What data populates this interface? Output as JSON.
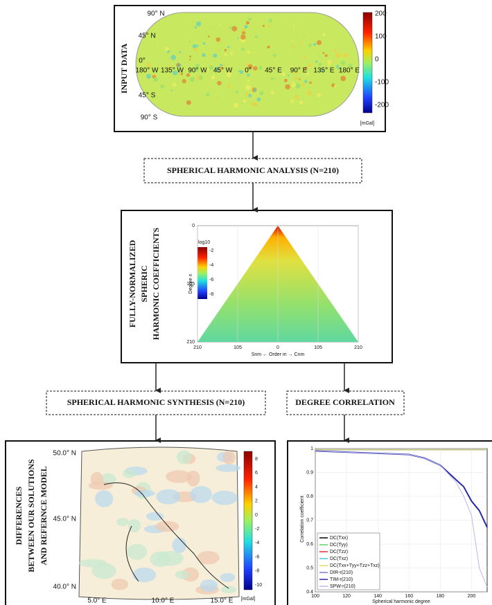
{
  "input_data": {
    "label": "INPUT DATA",
    "lat_labels": [
      "90° N",
      "45° N",
      "0°",
      "45° S",
      "90° S"
    ],
    "lon_labels": [
      "180° W",
      "135° W",
      "90° W",
      "45° W",
      "0°",
      "45° E",
      "90° E",
      "135° E",
      "180° E"
    ],
    "colorbar_ticks": [
      200,
      100,
      0,
      -100,
      -200
    ],
    "colorbar_unit": "[mGal]"
  },
  "analysis": {
    "label": "SPHERICAL HARMONIC ANALYSIS (N=210)"
  },
  "coefficients": {
    "label_lines": [
      "FULLY-NORMALIZED",
      "SPHERIC",
      "HARMONIC COEFFICIENTS"
    ],
    "colorbar_title": "log10",
    "colorbar_ticks": [
      -2,
      -4,
      -6,
      -8
    ],
    "yticks": [
      0,
      105,
      210
    ],
    "ylabel": "Degree n",
    "xticks": [
      210,
      105,
      0,
      105,
      210
    ],
    "xlabel": "Snm ← Order m → Cnm"
  },
  "synthesis": {
    "label": "SPHERICAL HARMONIC SYNTHESIS (N=210)"
  },
  "degree_correlation": {
    "label": "DEGREE CORRELATION"
  },
  "differences": {
    "label_lines": [
      "DIFFERENCES",
      "BETWEEN OUR SOLUTIONS",
      "AND REFERNCE MODEL"
    ],
    "lat_labels": [
      "50.0° N",
      "45.0° N",
      "40.0° N"
    ],
    "lon_labels": [
      "5.0° E",
      "10.0° E",
      "15.0° E"
    ],
    "colorbar_ticks": [
      8,
      6,
      4,
      2,
      0,
      -2,
      -4,
      -6,
      -8,
      -10
    ],
    "colorbar_unit": "[mGal]"
  },
  "chart_data": {
    "type": "line",
    "xlabel": "Spherical harmonic degree",
    "ylabel": "Correlation coefficient",
    "x": [
      100,
      120,
      140,
      160,
      170,
      180,
      190,
      195,
      200,
      205,
      210
    ],
    "xlim": [
      100,
      210
    ],
    "ylim": [
      0.4,
      1
    ],
    "xticks": [
      100,
      120,
      140,
      160,
      180,
      200
    ],
    "yticks": [
      0.4,
      0.5,
      0.6,
      0.7,
      0.8,
      0.9,
      1
    ],
    "series": [
      {
        "name": "DC(Txx)",
        "color": "#000000",
        "values": [
          0.995,
          0.995,
          0.995,
          0.995,
          0.995,
          0.995,
          0.995,
          0.995,
          0.995,
          0.995,
          0.995
        ]
      },
      {
        "name": "DC(Tyy)",
        "color": "#5ad65a",
        "values": [
          0.995,
          0.995,
          0.995,
          0.995,
          0.995,
          0.995,
          0.995,
          0.995,
          0.995,
          0.995,
          0.995
        ]
      },
      {
        "name": "DC(Tzz)",
        "color": "#e03030",
        "values": [
          0.995,
          0.995,
          0.995,
          0.995,
          0.995,
          0.995,
          0.995,
          0.995,
          0.995,
          0.995,
          0.995
        ]
      },
      {
        "name": "DC(Txz)",
        "color": "#40c8e0",
        "values": [
          0.995,
          0.995,
          0.995,
          0.995,
          0.995,
          0.995,
          0.995,
          0.995,
          0.995,
          0.995,
          0.995
        ]
      },
      {
        "name": "DC(Txx+Tyy+Tzz+Txz)",
        "color": "#e8d860",
        "values": [
          0.995,
          0.995,
          0.995,
          0.995,
          0.995,
          0.995,
          0.995,
          0.995,
          0.995,
          0.995,
          0.995
        ]
      },
      {
        "name": "DIR-r(210)",
        "color": "#7a7ad8",
        "values": [
          0.99,
          0.985,
          0.98,
          0.975,
          0.96,
          0.93,
          0.87,
          0.84,
          0.78,
          0.74,
          0.67
        ]
      },
      {
        "name": "TIM-r(210)",
        "color": "#2828a8",
        "values": [
          0.99,
          0.985,
          0.98,
          0.975,
          0.96,
          0.93,
          0.87,
          0.84,
          0.78,
          0.74,
          0.67
        ]
      },
      {
        "name": "SPW-r(210)",
        "color": "#b8b8f0",
        "values": [
          0.99,
          0.985,
          0.98,
          0.975,
          0.96,
          0.93,
          0.86,
          0.8,
          0.72,
          0.5,
          0.42
        ]
      }
    ]
  }
}
